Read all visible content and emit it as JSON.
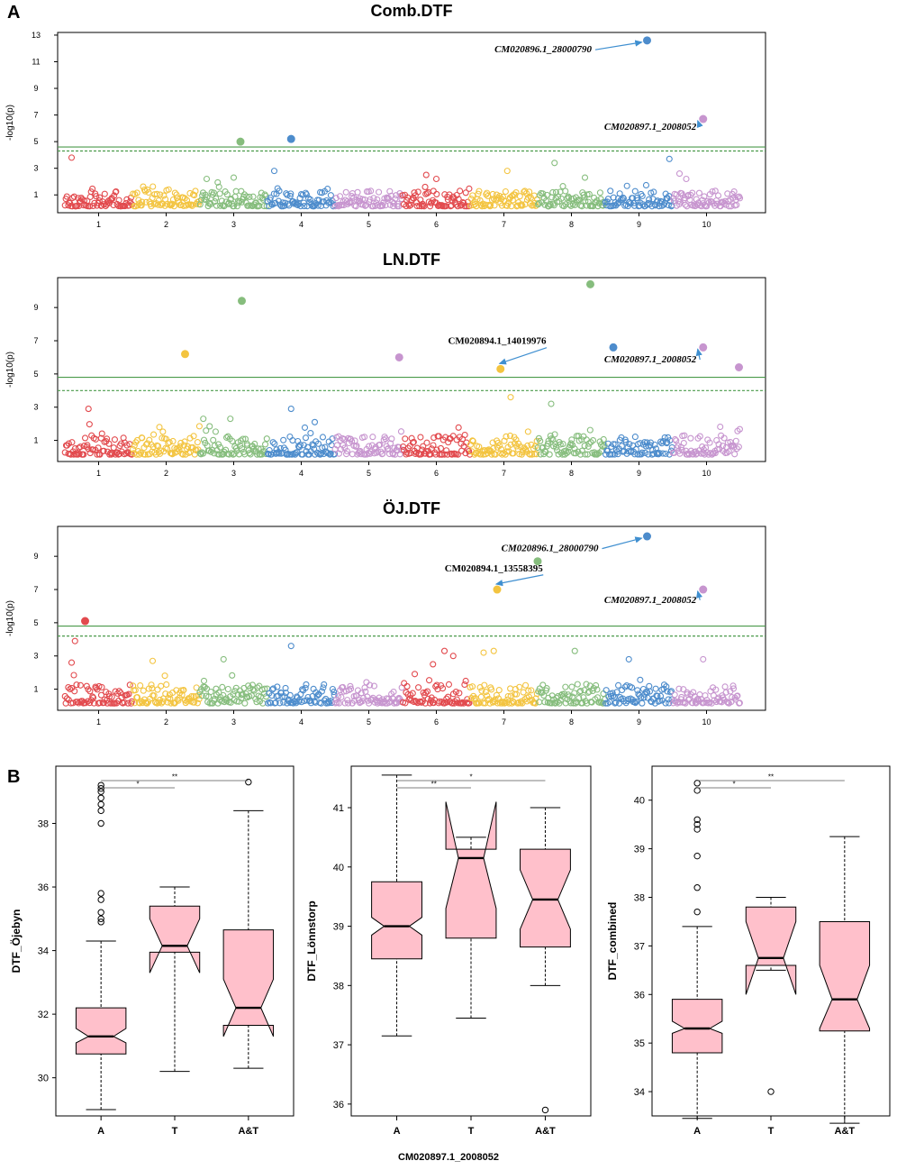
{
  "figure": {
    "panel_a_label": "A",
    "panel_b_label": "B",
    "footer_marker": "CM020897.1_2008052"
  },
  "colors": {
    "chr": [
      "#e24a4e",
      "#f3c440",
      "#86bd7d",
      "#4d8ccc",
      "#c795cf",
      "#e24a4e",
      "#f3c440",
      "#86bd7d",
      "#4d8ccc",
      "#c795cf"
    ],
    "threshold": "#4a9a4a",
    "arrow": "#3f8fd0",
    "box_fill": "#ffc0cb"
  },
  "chart_data": [
    {
      "type": "scatter",
      "kind": "manhattan",
      "title": "Comb.DTF",
      "ylabel": "-log10(p)",
      "xlabel": "",
      "chromosomes": [
        "1",
        "2",
        "3",
        "4",
        "5",
        "6",
        "7",
        "8",
        "9",
        "10"
      ],
      "ylim": [
        0,
        13.2
      ],
      "yticks": [
        1,
        3,
        5,
        7,
        9,
        11,
        13
      ],
      "thresholds": [
        {
          "value": 4.6,
          "style": "solid"
        },
        {
          "value": 4.3,
          "style": "dashed"
        }
      ],
      "seed": 11,
      "hits": [
        {
          "chr": 9,
          "pos": 0.62,
          "y": 12.6
        },
        {
          "chr": 10,
          "pos": 0.45,
          "y": 6.7
        },
        {
          "chr": 4,
          "pos": 0.35,
          "y": 5.2
        },
        {
          "chr": 3,
          "pos": 0.6,
          "y": 5.0
        }
      ],
      "open_peaks": [
        {
          "chr": 1,
          "pos": 0.1,
          "y": 3.8
        },
        {
          "chr": 9,
          "pos": 0.95,
          "y": 3.7
        },
        {
          "chr": 8,
          "pos": 0.25,
          "y": 3.4
        },
        {
          "chr": 4,
          "pos": 0.1,
          "y": 2.8
        },
        {
          "chr": 7,
          "pos": 0.55,
          "y": 2.8
        },
        {
          "chr": 10,
          "pos": 0.1,
          "y": 2.6
        },
        {
          "chr": 6,
          "pos": 0.35,
          "y": 2.5
        },
        {
          "chr": 3,
          "pos": 0.5,
          "y": 2.3
        },
        {
          "chr": 8,
          "pos": 0.7,
          "y": 2.3
        },
        {
          "chr": 3,
          "pos": 0.1,
          "y": 2.2
        },
        {
          "chr": 6,
          "pos": 0.5,
          "y": 2.2
        },
        {
          "chr": 10,
          "pos": 0.2,
          "y": 2.2
        }
      ],
      "annotations": [
        {
          "text": "CM020896.1_28000790",
          "italic": true,
          "chr": 9,
          "pos": 0.62,
          "y": 12.6,
          "text_chr": 7.8,
          "text_y": 11.7,
          "align": "end"
        },
        {
          "text": "CM020897.1_2008052",
          "italic": true,
          "chr": 10,
          "pos": 0.45,
          "y": 6.7,
          "text_chr": 9.35,
          "text_y": 5.9,
          "align": "end"
        }
      ]
    },
    {
      "type": "scatter",
      "kind": "manhattan",
      "title": "LN.DTF",
      "ylabel": "-log10(p)",
      "xlabel": "",
      "chromosomes": [
        "1",
        "2",
        "3",
        "4",
        "5",
        "6",
        "7",
        "8",
        "9",
        "10"
      ],
      "ylim": [
        0,
        10.8
      ],
      "yticks": [
        1,
        3,
        5,
        7,
        9
      ],
      "thresholds": [
        {
          "value": 4.8,
          "style": "solid"
        },
        {
          "value": 4.0,
          "style": "dashed"
        }
      ],
      "seed": 23,
      "hits": [
        {
          "chr": 8,
          "pos": 0.78,
          "y": 10.4
        },
        {
          "chr": 3,
          "pos": 0.62,
          "y": 9.4
        },
        {
          "chr": 9,
          "pos": 0.12,
          "y": 6.6
        },
        {
          "chr": 10,
          "pos": 0.45,
          "y": 6.6
        },
        {
          "chr": 2,
          "pos": 0.78,
          "y": 6.2
        },
        {
          "chr": 5,
          "pos": 0.95,
          "y": 6.0
        },
        {
          "chr": 7,
          "pos": 0.45,
          "y": 5.3
        },
        {
          "chr": 10,
          "pos": 0.98,
          "y": 5.4
        }
      ],
      "open_peaks": [
        {
          "chr": 7,
          "pos": 0.6,
          "y": 3.6
        },
        {
          "chr": 8,
          "pos": 0.2,
          "y": 3.2
        },
        {
          "chr": 1,
          "pos": 0.35,
          "y": 2.9
        },
        {
          "chr": 4,
          "pos": 0.35,
          "y": 2.9
        },
        {
          "chr": 3,
          "pos": 0.05,
          "y": 2.3
        },
        {
          "chr": 3,
          "pos": 0.45,
          "y": 2.3
        },
        {
          "chr": 4,
          "pos": 0.7,
          "y": 2.1
        },
        {
          "chr": 2,
          "pos": 0.4,
          "y": 1.8
        }
      ],
      "annotations": [
        {
          "text": "CM020894.1_14019976",
          "italic": false,
          "chr": 7,
          "pos": 0.45,
          "y": 5.3,
          "text_chr": 6.4,
          "text_y": 6.8,
          "align": "middle"
        },
        {
          "text": "CM020897.1_2008052",
          "italic": true,
          "chr": 10,
          "pos": 0.45,
          "y": 6.6,
          "text_chr": 9.35,
          "text_y": 5.7,
          "align": "end"
        }
      ]
    },
    {
      "type": "scatter",
      "kind": "manhattan",
      "title": "ÖJ.DTF",
      "ylabel": "-log10(p)",
      "xlabel": "",
      "chromosomes": [
        "1",
        "2",
        "3",
        "4",
        "5",
        "6",
        "7",
        "8",
        "9",
        "10"
      ],
      "ylim": [
        0,
        10.8
      ],
      "yticks": [
        1,
        3,
        5,
        7,
        9
      ],
      "thresholds": [
        {
          "value": 4.8,
          "style": "solid"
        },
        {
          "value": 4.2,
          "style": "dashed"
        }
      ],
      "seed": 37,
      "hits": [
        {
          "chr": 9,
          "pos": 0.62,
          "y": 10.2
        },
        {
          "chr": 8,
          "pos": 0.0,
          "y": 8.7
        },
        {
          "chr": 7,
          "pos": 0.4,
          "y": 7.0
        },
        {
          "chr": 10,
          "pos": 0.45,
          "y": 7.0
        },
        {
          "chr": 1,
          "pos": 0.3,
          "y": 5.1
        }
      ],
      "open_peaks": [
        {
          "chr": 1,
          "pos": 0.15,
          "y": 3.9
        },
        {
          "chr": 4,
          "pos": 0.35,
          "y": 3.6
        },
        {
          "chr": 7,
          "pos": 0.35,
          "y": 3.3
        },
        {
          "chr": 7,
          "pos": 0.2,
          "y": 3.2
        },
        {
          "chr": 6,
          "pos": 0.62,
          "y": 3.3
        },
        {
          "chr": 8,
          "pos": 0.55,
          "y": 3.3
        },
        {
          "chr": 6,
          "pos": 0.75,
          "y": 3.0
        },
        {
          "chr": 10,
          "pos": 0.45,
          "y": 2.8
        },
        {
          "chr": 9,
          "pos": 0.35,
          "y": 2.8
        },
        {
          "chr": 3,
          "pos": 0.35,
          "y": 2.8
        },
        {
          "chr": 2,
          "pos": 0.3,
          "y": 2.7
        },
        {
          "chr": 1,
          "pos": 0.1,
          "y": 2.6
        },
        {
          "chr": 6,
          "pos": 0.45,
          "y": 2.5
        }
      ],
      "annotations": [
        {
          "text": "CM020896.1_28000790",
          "italic": true,
          "chr": 9,
          "pos": 0.62,
          "y": 10.2,
          "text_chr": 7.9,
          "text_y": 9.3,
          "align": "end"
        },
        {
          "text": "CM020894.1_13558395",
          "italic": false,
          "chr": 7,
          "pos": 0.4,
          "y": 7.0,
          "text_chr": 6.35,
          "text_y": 8.1,
          "align": "middle"
        },
        {
          "text": "CM020897.1_2008052",
          "italic": true,
          "chr": 10,
          "pos": 0.45,
          "y": 7.0,
          "text_chr": 9.35,
          "text_y": 6.2,
          "align": "end"
        }
      ]
    },
    {
      "type": "box",
      "ylabel": "DTF_Öjebyn",
      "xlabel": "",
      "categories": [
        "A",
        "T",
        "A&T"
      ],
      "ylim": [
        28.8,
        39.8
      ],
      "yticks": [
        30,
        32,
        34,
        36,
        38
      ],
      "boxes": [
        {
          "whisker_low": 29.0,
          "q1": 30.75,
          "median": 31.3,
          "q3": 32.2,
          "whisker_high": 34.3,
          "notch_low": 31.1,
          "notch_high": 31.55,
          "outliers": [
            34.9,
            35.0,
            35.2,
            35.6,
            35.8,
            38.0,
            38.4,
            38.6,
            38.8,
            39.0,
            39.1,
            39.2
          ]
        },
        {
          "whisker_low": 30.2,
          "q1": 33.95,
          "median": 34.15,
          "q3": 35.4,
          "whisker_high": 36.0,
          "notch_low": 33.3,
          "notch_high": 35.0,
          "outliers": []
        },
        {
          "whisker_low": 30.3,
          "q1": 31.65,
          "median": 32.2,
          "q3": 34.65,
          "whisker_high": 38.4,
          "notch_low": 31.3,
          "notch_high": 33.1,
          "outliers": [
            39.3
          ]
        }
      ],
      "significance": [
        {
          "from": 0,
          "to": 1,
          "label": "*"
        },
        {
          "from": 0,
          "to": 2,
          "label": "**"
        }
      ]
    },
    {
      "type": "box",
      "ylabel": "DTF_Lönnstorp",
      "xlabel": "",
      "categories": [
        "A",
        "T",
        "A&T"
      ],
      "ylim": [
        35.8,
        41.7
      ],
      "yticks": [
        36,
        37,
        38,
        39,
        40,
        41
      ],
      "boxes": [
        {
          "whisker_low": 37.15,
          "q1": 38.45,
          "median": 39.0,
          "q3": 39.75,
          "whisker_high": 41.55,
          "notch_low": 38.85,
          "notch_high": 39.15,
          "outliers": []
        },
        {
          "whisker_low": 37.45,
          "q1": 38.8,
          "median": 40.15,
          "q3": 40.3,
          "whisker_high": 40.5,
          "notch_low": 39.3,
          "notch_high": 41.1,
          "outliers": []
        },
        {
          "whisker_low": 38.0,
          "q1": 38.65,
          "median": 39.45,
          "q3": 40.3,
          "whisker_high": 41.0,
          "notch_low": 38.95,
          "notch_high": 39.95,
          "outliers": [
            35.9
          ]
        }
      ],
      "significance": [
        {
          "from": 0,
          "to": 1,
          "label": "**"
        },
        {
          "from": 0,
          "to": 2,
          "label": "*"
        }
      ]
    },
    {
      "type": "box",
      "ylabel": "DTF_combined",
      "xlabel": "",
      "categories": [
        "A",
        "T",
        "A&T"
      ],
      "ylim": [
        33.5,
        40.7
      ],
      "yticks": [
        34,
        35,
        36,
        37,
        38,
        39,
        40
      ],
      "boxes": [
        {
          "whisker_low": 33.45,
          "q1": 34.8,
          "median": 35.3,
          "q3": 35.9,
          "whisker_high": 37.4,
          "notch_low": 35.2,
          "notch_high": 35.45,
          "outliers": [
            37.7,
            38.2,
            38.85,
            39.4,
            39.5,
            39.6,
            40.2,
            40.35
          ]
        },
        {
          "whisker_low": 36.5,
          "q1": 36.6,
          "median": 36.75,
          "q3": 37.8,
          "whisker_high": 38.0,
          "notch_low": 36.0,
          "notch_high": 37.5,
          "outliers": [
            34.0
          ]
        },
        {
          "whisker_low": 33.35,
          "q1": 35.25,
          "median": 35.9,
          "q3": 37.5,
          "whisker_high": 39.25,
          "notch_low": 35.3,
          "notch_high": 36.6,
          "outliers": []
        }
      ],
      "significance": [
        {
          "from": 0,
          "to": 1,
          "label": "*"
        },
        {
          "from": 0,
          "to": 2,
          "label": "**"
        }
      ]
    }
  ]
}
